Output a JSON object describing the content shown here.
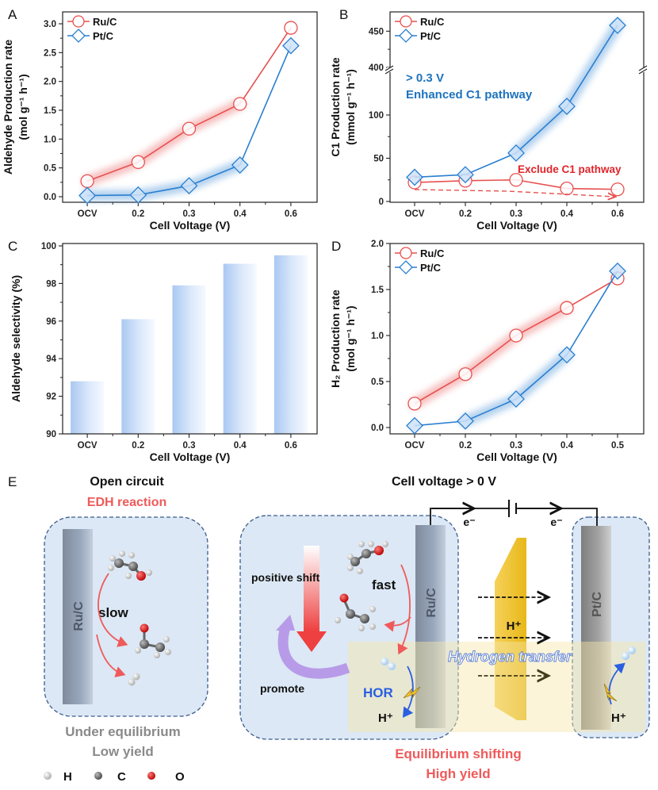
{
  "panel_labels": {
    "a": "A",
    "b": "B",
    "c": "C",
    "d": "D",
    "e": "E"
  },
  "chart_data": [
    {
      "panel": "A",
      "type": "line",
      "categories": [
        "OCV",
        "0.2",
        "0.3",
        "0.4",
        "0.6"
      ],
      "xlabel": "Cell Voltage (V)",
      "ylabel": [
        "Aldehyde Production rate",
        "(mol g⁻¹ h⁻¹)"
      ],
      "ylim": [
        -0.1,
        3.2
      ],
      "yticks": [
        "0.0",
        "0.5",
        "1.0",
        "1.5",
        "2.0",
        "2.5",
        "3.0"
      ],
      "legend": "top-left",
      "series": [
        {
          "name": "Ru/C",
          "marker": "circle",
          "color": "#e8504f",
          "values": [
            0.27,
            0.6,
            1.18,
            1.61,
            2.93
          ]
        },
        {
          "name": "Pt/C",
          "marker": "diamond",
          "color": "#2a7fd0",
          "values": [
            0.02,
            0.03,
            0.19,
            0.55,
            2.62
          ]
        }
      ]
    },
    {
      "panel": "B",
      "type": "line",
      "categories": [
        "OCV",
        "0.2",
        "0.3",
        "0.4",
        "0.6"
      ],
      "xlabel": "Cell Voltage (V)",
      "ylabel": [
        "C1 Production rate",
        "(mmol g⁻¹ h⁻¹)"
      ],
      "ylim": [
        0,
        476
      ],
      "axis_break": [
        150,
        400
      ],
      "yticks": [
        "0",
        "50",
        "100",
        "400",
        "450"
      ],
      "legend": "top-left",
      "annotations": [
        "> 0.3 V",
        "Enhanced C1 pathway",
        "Exclude C1 pathway"
      ],
      "series": [
        {
          "name": "Ru/C",
          "marker": "circle",
          "color": "#e8504f",
          "values": [
            22,
            24,
            25,
            15,
            14
          ]
        },
        {
          "name": "Pt/C",
          "marker": "diamond",
          "color": "#2a7fd0",
          "values": [
            28,
            31,
            56,
            110,
            458
          ]
        }
      ]
    },
    {
      "panel": "C",
      "type": "bar",
      "categories": [
        "OCV",
        "0.2",
        "0.3",
        "0.4",
        "0.6"
      ],
      "xlabel": "Cell Voltage (V)",
      "ylabel": [
        "Aldehyde selectivity (%)"
      ],
      "ylim": [
        90,
        100
      ],
      "yticks": [
        "90",
        "92",
        "94",
        "96",
        "98",
        "100"
      ],
      "color": "#b9d3f5",
      "values": [
        92.8,
        96.1,
        97.9,
        99.05,
        99.5
      ]
    },
    {
      "panel": "D",
      "type": "line",
      "categories": [
        "OCV",
        "0.2",
        "0.3",
        "0.4",
        "0.5"
      ],
      "xlabel": "Cell Voltage (V)",
      "ylabel": [
        "H₂ Production rate",
        "(mol g⁻¹ h⁻¹)"
      ],
      "ylim": [
        -0.07,
        2.0
      ],
      "yticks": [
        "0.0",
        "0.5",
        "1.0",
        "1.5",
        "2.0"
      ],
      "legend": "top-left",
      "series": [
        {
          "name": "Ru/C",
          "marker": "circle",
          "color": "#e8504f",
          "values": [
            0.26,
            0.58,
            1.0,
            1.3,
            1.62
          ]
        },
        {
          "name": "Pt/C",
          "marker": "diamond",
          "color": "#2a7fd0",
          "values": [
            0.02,
            0.07,
            0.31,
            0.79,
            1.7
          ]
        }
      ]
    }
  ],
  "schematic": {
    "open_circuit": {
      "title": "Open circuit",
      "subtitle": "EDH reaction",
      "electrode": "Ru/C",
      "rate": "slow",
      "caption": [
        "Under equilibrium",
        "Low yield"
      ]
    },
    "cell_voltage": {
      "title": "Cell voltage  > 0 V",
      "anode": "Ru/C",
      "cathode": "Pt/C",
      "electron_left": "e⁻",
      "electron_right": "e⁻",
      "proton_membrane": "H⁺",
      "positive_shift": "positive shift",
      "fast": "fast",
      "promote": "promote",
      "hor": "HOR",
      "proton_anode": "H⁺",
      "proton_cathode": "H⁺",
      "hydrogen_transfer": "Hydrogen transfer",
      "caption": [
        "Equilibrium shifting",
        "High yield"
      ]
    },
    "atom_legend": [
      "H",
      "C",
      "O"
    ],
    "colors": {
      "red": "#e8504f",
      "blue": "#1e73be",
      "gray": "#8a8a8a",
      "box": "#dce8f5"
    }
  }
}
